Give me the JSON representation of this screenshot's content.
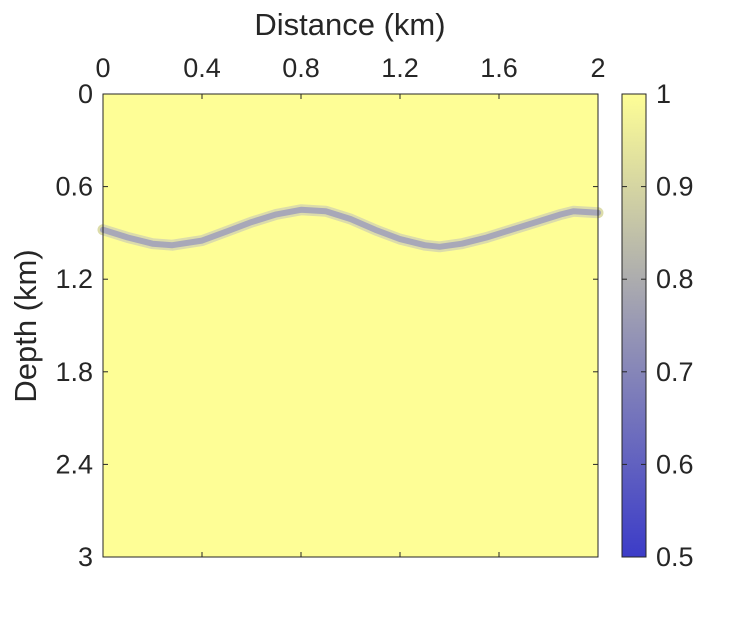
{
  "chart_data": {
    "type": "heatmap",
    "title": "",
    "xlabel": "Distance (km)",
    "ylabel": "Depth (km)",
    "x_axis_position": "top",
    "y_axis_direction": "down",
    "xlim": [
      0,
      2
    ],
    "ylim": [
      0,
      3
    ],
    "x_ticks": [
      "0",
      "0.4",
      "0.8",
      "1.2",
      "1.6",
      "2"
    ],
    "y_ticks": [
      "0",
      "0.6",
      "1.2",
      "1.8",
      "2.4",
      "3"
    ],
    "colorbar": {
      "range": [
        0.5,
        1
      ],
      "ticks": [
        "1",
        "0.9",
        "0.8",
        "0.7",
        "0.6",
        "0.5"
      ],
      "colors": [
        "#3c3cc8",
        "#fefe96"
      ]
    },
    "background_value": 1.0,
    "reflector": {
      "min_value": 0.75,
      "x": [
        0,
        0.1,
        0.2,
        0.28,
        0.4,
        0.5,
        0.6,
        0.7,
        0.8,
        0.9,
        1.0,
        1.1,
        1.2,
        1.3,
        1.36,
        1.45,
        1.55,
        1.65,
        1.75,
        1.85,
        1.9,
        2.0
      ],
      "depth": [
        0.88,
        0.93,
        0.97,
        0.98,
        0.95,
        0.89,
        0.83,
        0.78,
        0.75,
        0.76,
        0.81,
        0.88,
        0.94,
        0.98,
        0.99,
        0.97,
        0.93,
        0.88,
        0.83,
        0.78,
        0.76,
        0.77
      ]
    },
    "grid": false,
    "legend": "none"
  }
}
